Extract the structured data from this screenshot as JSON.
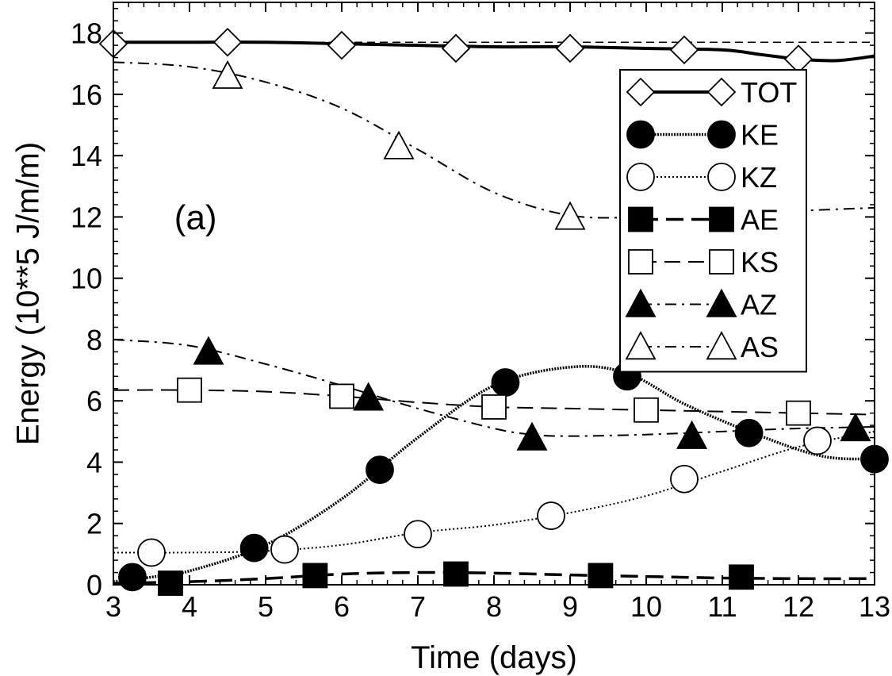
{
  "chart_data": {
    "type": "line",
    "title": "",
    "panel_label": "(a)",
    "xlabel": "Time (days)",
    "ylabel": "Energy (10**5 J/m/m)",
    "xlim": [
      3,
      13
    ],
    "ylim": [
      0,
      19
    ],
    "xticks": [
      3,
      4,
      5,
      6,
      7,
      8,
      9,
      10,
      11,
      12,
      13
    ],
    "yticks": [
      0,
      2,
      4,
      6,
      8,
      10,
      12,
      14,
      16,
      18
    ],
    "reference_line": {
      "y": 17.7,
      "style": "dashed"
    },
    "legend_position": "top-right",
    "series": [
      {
        "name": "TOT",
        "marker": "diamond-open",
        "line": "solid-thick",
        "curve": [
          [
            3,
            17.7
          ],
          [
            4,
            17.7
          ],
          [
            5,
            17.7
          ],
          [
            6,
            17.65
          ],
          [
            7,
            17.6
          ],
          [
            8,
            17.55
          ],
          [
            9,
            17.55
          ],
          [
            10,
            17.5
          ],
          [
            11,
            17.45
          ],
          [
            11.5,
            17.3
          ],
          [
            12,
            17.15
          ],
          [
            12.5,
            17.1
          ],
          [
            13,
            17.25
          ]
        ],
        "markers": [
          [
            3,
            17.65
          ],
          [
            4.5,
            17.7
          ],
          [
            6,
            17.6
          ],
          [
            7.5,
            17.5
          ],
          [
            9,
            17.5
          ],
          [
            10.5,
            17.45
          ],
          [
            12,
            17.15
          ]
        ]
      },
      {
        "name": "KE",
        "marker": "circle-filled",
        "line": "dotted-thick",
        "curve": [
          [
            3,
            0.1
          ],
          [
            3.5,
            0.25
          ],
          [
            4,
            0.45
          ],
          [
            5,
            1.3
          ],
          [
            6,
            2.8
          ],
          [
            7,
            4.8
          ],
          [
            8,
            6.5
          ],
          [
            9,
            7.1
          ],
          [
            9.75,
            6.9
          ],
          [
            10.5,
            5.9
          ],
          [
            11.4,
            4.95
          ],
          [
            12.3,
            4.2
          ],
          [
            13,
            4.1
          ]
        ],
        "markers": [
          [
            3.25,
            0.25
          ],
          [
            4.85,
            1.2
          ],
          [
            6.5,
            3.75
          ],
          [
            8.15,
            6.6
          ],
          [
            9.75,
            6.8
          ],
          [
            11.35,
            4.95
          ],
          [
            13,
            4.1
          ]
        ]
      },
      {
        "name": "KZ",
        "marker": "circle-open",
        "line": "dotted",
        "curve": [
          [
            3,
            1.05
          ],
          [
            4,
            1.05
          ],
          [
            5,
            1.1
          ],
          [
            6,
            1.3
          ],
          [
            7,
            1.7
          ],
          [
            8,
            1.95
          ],
          [
            9,
            2.35
          ],
          [
            10,
            2.9
          ],
          [
            11,
            3.7
          ],
          [
            12,
            4.5
          ],
          [
            13,
            5.0
          ]
        ],
        "markers": [
          [
            3.5,
            1.05
          ],
          [
            5.25,
            1.15
          ],
          [
            7,
            1.65
          ],
          [
            8.75,
            2.25
          ],
          [
            10.5,
            3.45
          ],
          [
            12.25,
            4.7
          ]
        ]
      },
      {
        "name": "AE",
        "marker": "square-filled",
        "line": "dashed-thick",
        "curve": [
          [
            3,
            0.05
          ],
          [
            4,
            0.1
          ],
          [
            5,
            0.2
          ],
          [
            6,
            0.35
          ],
          [
            7,
            0.4
          ],
          [
            8,
            0.38
          ],
          [
            9,
            0.32
          ],
          [
            10,
            0.27
          ],
          [
            11,
            0.22
          ],
          [
            12,
            0.2
          ],
          [
            13,
            0.2
          ]
        ],
        "markers": [
          [
            3.75,
            0.05
          ],
          [
            5.65,
            0.3
          ],
          [
            7.5,
            0.35
          ],
          [
            9.4,
            0.3
          ],
          [
            11.25,
            0.25
          ]
        ]
      },
      {
        "name": "KS",
        "marker": "square-open",
        "line": "dashed",
        "curve": [
          [
            3,
            6.35
          ],
          [
            4,
            6.35
          ],
          [
            5,
            6.3
          ],
          [
            6,
            6.15
          ],
          [
            7,
            5.95
          ],
          [
            8,
            5.8
          ],
          [
            9,
            5.75
          ],
          [
            10,
            5.7
          ],
          [
            11,
            5.65
          ],
          [
            12,
            5.6
          ],
          [
            13,
            5.55
          ]
        ],
        "markers": [
          [
            4,
            6.35
          ],
          [
            6,
            6.15
          ],
          [
            8,
            5.8
          ],
          [
            10,
            5.7
          ],
          [
            12,
            5.6
          ]
        ]
      },
      {
        "name": "AZ",
        "marker": "triangle-filled",
        "line": "dash-dot",
        "curve": [
          [
            3,
            8.0
          ],
          [
            4,
            7.8
          ],
          [
            5,
            7.2
          ],
          [
            6,
            6.5
          ],
          [
            7,
            5.75
          ],
          [
            8,
            5.1
          ],
          [
            8.5,
            4.9
          ],
          [
            9,
            4.85
          ],
          [
            10,
            4.9
          ],
          [
            11,
            5.0
          ],
          [
            12,
            5.1
          ],
          [
            13,
            5.15
          ]
        ],
        "markers": [
          [
            4.25,
            7.6
          ],
          [
            6.35,
            6.1
          ],
          [
            8.5,
            4.8
          ],
          [
            10.6,
            4.85
          ],
          [
            12.75,
            5.1
          ]
        ]
      },
      {
        "name": "AS",
        "marker": "triangle-open",
        "line": "dash-dot",
        "curve": [
          [
            3,
            17.05
          ],
          [
            4,
            16.9
          ],
          [
            5,
            16.4
          ],
          [
            6,
            15.55
          ],
          [
            7,
            14.2
          ],
          [
            8,
            12.8
          ],
          [
            9,
            12.05
          ],
          [
            10,
            12.0
          ],
          [
            11,
            12.1
          ],
          [
            12,
            12.2
          ],
          [
            13,
            12.3
          ]
        ],
        "markers": [
          [
            4.5,
            16.6
          ],
          [
            6.75,
            14.3
          ],
          [
            9,
            12.0
          ]
        ]
      }
    ]
  }
}
